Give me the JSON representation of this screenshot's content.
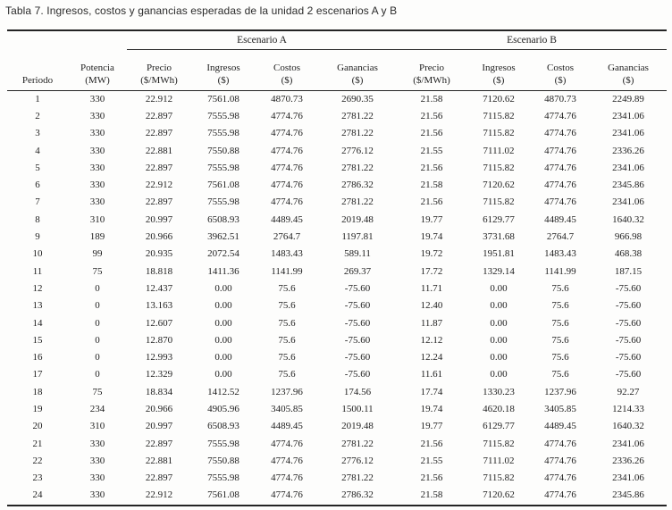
{
  "title": "Tabla 7. Ingresos, costos y ganancias esperadas de la unidad 2 escenarios A y B",
  "colors": {
    "background": "#fdfdfc",
    "text": "#1e1e1e",
    "rule": "#242424"
  },
  "table": {
    "group_headers": {
      "escenario_a": "Escenario A",
      "escenario_b": "Escenario B"
    },
    "columns": [
      {
        "line1": "Periodo",
        "line2": ""
      },
      {
        "line1": "Potencia",
        "line2": "(MW)"
      },
      {
        "line1": "Precio",
        "line2": "($/MWh)"
      },
      {
        "line1": "Ingresos",
        "line2": "($)"
      },
      {
        "line1": "Costos",
        "line2": "($)"
      },
      {
        "line1": "Ganancias",
        "line2": "($)"
      },
      {
        "line1": "Precio",
        "line2": "($/MWh)"
      },
      {
        "line1": "Ingresos",
        "line2": "($)"
      },
      {
        "line1": "Costos",
        "line2": "($)"
      },
      {
        "line1": "Ganancias",
        "line2": "($)"
      }
    ],
    "rows": [
      [
        "1",
        "330",
        "22.912",
        "7561.08",
        "4870.73",
        "2690.35",
        "21.58",
        "7120.62",
        "4870.73",
        "2249.89"
      ],
      [
        "2",
        "330",
        "22.897",
        "7555.98",
        "4774.76",
        "2781.22",
        "21.56",
        "7115.82",
        "4774.76",
        "2341.06"
      ],
      [
        "3",
        "330",
        "22.897",
        "7555.98",
        "4774.76",
        "2781.22",
        "21.56",
        "7115.82",
        "4774.76",
        "2341.06"
      ],
      [
        "4",
        "330",
        "22.881",
        "7550.88",
        "4774.76",
        "2776.12",
        "21.55",
        "7111.02",
        "4774.76",
        "2336.26"
      ],
      [
        "5",
        "330",
        "22.897",
        "7555.98",
        "4774.76",
        "2781.22",
        "21.56",
        "7115.82",
        "4774.76",
        "2341.06"
      ],
      [
        "6",
        "330",
        "22.912",
        "7561.08",
        "4774.76",
        "2786.32",
        "21.58",
        "7120.62",
        "4774.76",
        "2345.86"
      ],
      [
        "7",
        "330",
        "22.897",
        "7555.98",
        "4774.76",
        "2781.22",
        "21.56",
        "7115.82",
        "4774.76",
        "2341.06"
      ],
      [
        "8",
        "310",
        "20.997",
        "6508.93",
        "4489.45",
        "2019.48",
        "19.77",
        "6129.77",
        "4489.45",
        "1640.32"
      ],
      [
        "9",
        "189",
        "20.966",
        "3962.51",
        "2764.7",
        "1197.81",
        "19.74",
        "3731.68",
        "2764.7",
        "966.98"
      ],
      [
        "10",
        "99",
        "20.935",
        "2072.54",
        "1483.43",
        "589.11",
        "19.72",
        "1951.81",
        "1483.43",
        "468.38"
      ],
      [
        "11",
        "75",
        "18.818",
        "1411.36",
        "1141.99",
        "269.37",
        "17.72",
        "1329.14",
        "1141.99",
        "187.15"
      ],
      [
        "12",
        "0",
        "12.437",
        "0.00",
        "75.6",
        "-75.60",
        "11.71",
        "0.00",
        "75.6",
        "-75.60"
      ],
      [
        "13",
        "0",
        "13.163",
        "0.00",
        "75.6",
        "-75.60",
        "12.40",
        "0.00",
        "75.6",
        "-75.60"
      ],
      [
        "14",
        "0",
        "12.607",
        "0.00",
        "75.6",
        "-75.60",
        "11.87",
        "0.00",
        "75.6",
        "-75.60"
      ],
      [
        "15",
        "0",
        "12.870",
        "0.00",
        "75.6",
        "-75.60",
        "12.12",
        "0.00",
        "75.6",
        "-75.60"
      ],
      [
        "16",
        "0",
        "12.993",
        "0.00",
        "75.6",
        "-75.60",
        "12.24",
        "0.00",
        "75.6",
        "-75.60"
      ],
      [
        "17",
        "0",
        "12.329",
        "0.00",
        "75.6",
        "-75.60",
        "11.61",
        "0.00",
        "75.6",
        "-75.60"
      ],
      [
        "18",
        "75",
        "18.834",
        "1412.52",
        "1237.96",
        "174.56",
        "17.74",
        "1330.23",
        "1237.96",
        "92.27"
      ],
      [
        "19",
        "234",
        "20.966",
        "4905.96",
        "3405.85",
        "1500.11",
        "19.74",
        "4620.18",
        "3405.85",
        "1214.33"
      ],
      [
        "20",
        "310",
        "20.997",
        "6508.93",
        "4489.45",
        "2019.48",
        "19.77",
        "6129.77",
        "4489.45",
        "1640.32"
      ],
      [
        "21",
        "330",
        "22.897",
        "7555.98",
        "4774.76",
        "2781.22",
        "21.56",
        "7115.82",
        "4774.76",
        "2341.06"
      ],
      [
        "22",
        "330",
        "22.881",
        "7550.88",
        "4774.76",
        "2776.12",
        "21.55",
        "7111.02",
        "4774.76",
        "2336.26"
      ],
      [
        "23",
        "330",
        "22.897",
        "7555.98",
        "4774.76",
        "2781.22",
        "21.56",
        "7115.82",
        "4774.76",
        "2341.06"
      ],
      [
        "24",
        "330",
        "22.912",
        "7561.08",
        "4774.76",
        "2786.32",
        "21.58",
        "7120.62",
        "4774.76",
        "2345.86"
      ]
    ]
  }
}
